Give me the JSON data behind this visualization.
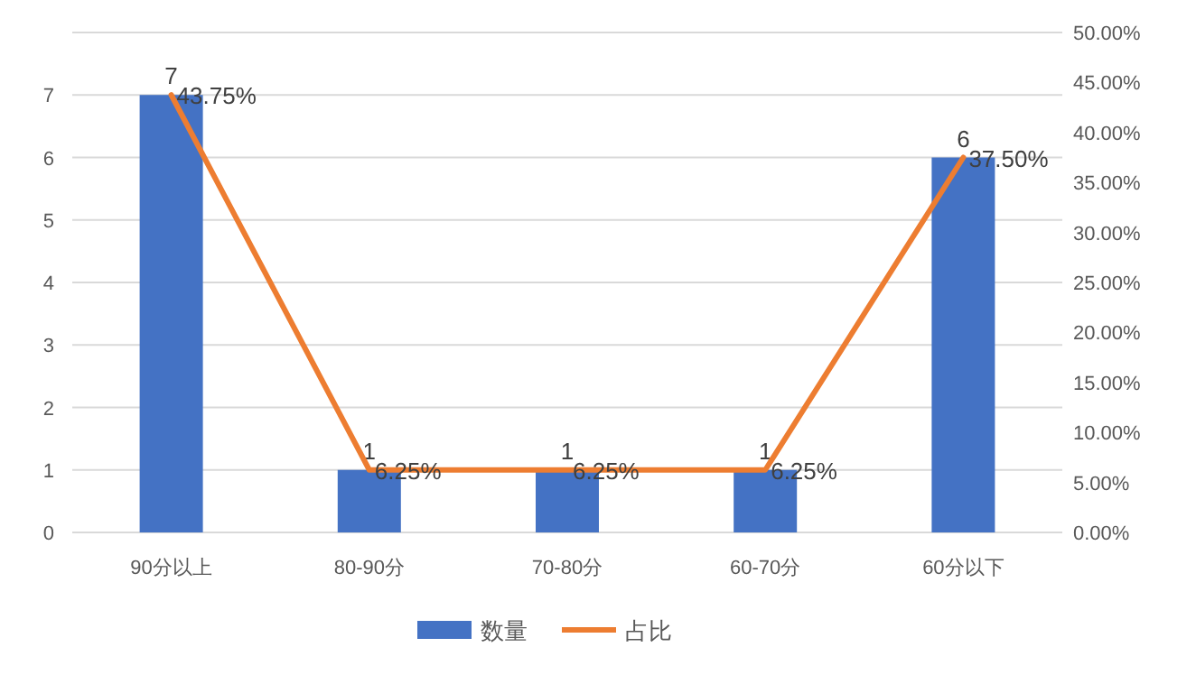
{
  "chart_data": {
    "type": "bar",
    "categories": [
      "90分以上",
      "80-90分",
      "70-80分",
      "60-70分",
      "60分以下"
    ],
    "series": [
      {
        "name": "数量",
        "color": "#4472c4",
        "values": [
          7,
          1,
          1,
          1,
          6
        ],
        "value_labels": [
          "7",
          "1",
          "1",
          "1",
          "6"
        ]
      },
      {
        "name": "占比",
        "type": "line",
        "axis": "y2",
        "color": "#ed7d31",
        "values": [
          43.75,
          6.25,
          6.25,
          6.25,
          37.5
        ],
        "value_labels": [
          "43.75%",
          "6.25%",
          "6.25%",
          "6.25%",
          "37.50%"
        ]
      }
    ],
    "ylim": [
      0,
      8
    ],
    "yticks": [
      0,
      1,
      2,
      3,
      4,
      5,
      6,
      7,
      {
        "value": 8,
        "label": null
      }
    ],
    "y2lim": [
      0,
      50
    ],
    "y2ticks": [
      {
        "value": 0,
        "label": "0.00%"
      },
      {
        "value": 5,
        "label": "5.00%"
      },
      {
        "value": 10,
        "label": "10.00%"
      },
      {
        "value": 15,
        "label": "15.00%"
      },
      {
        "value": 20,
        "label": "20.00%"
      },
      {
        "value": 25,
        "label": "25.00%"
      },
      {
        "value": 30,
        "label": "30.00%"
      },
      {
        "value": 35,
        "label": "35.00%"
      },
      {
        "value": 40,
        "label": "40.00%"
      },
      {
        "value": 45,
        "label": "45.00%"
      },
      {
        "value": 50,
        "label": "50.00%"
      }
    ],
    "grid": "y",
    "legend": "bottom",
    "marker": "none"
  }
}
